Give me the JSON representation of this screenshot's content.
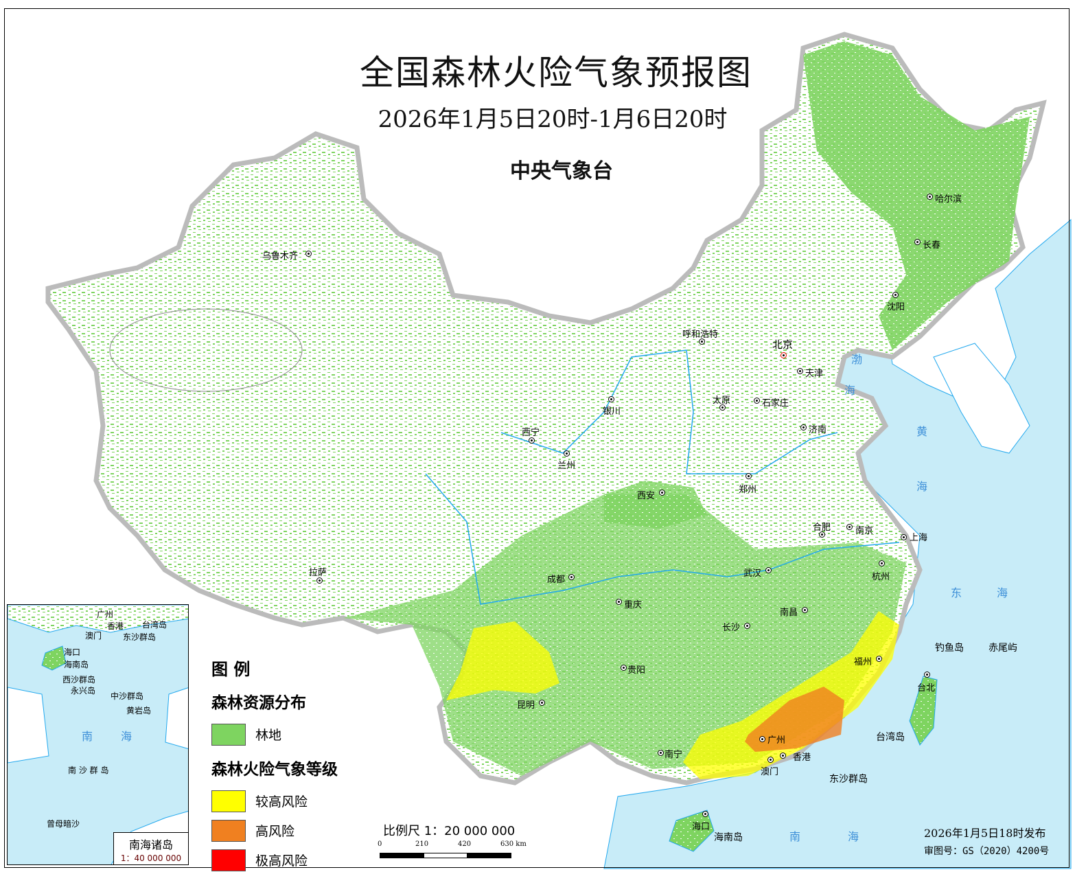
{
  "header": {
    "title": "全国森林火险气象预报图",
    "period": "2026年1月5日20时-1月6日20时",
    "issuer": "中央气象台"
  },
  "colors": {
    "forest": "#7ed460",
    "sea": "#c8ecf8",
    "river": "#22a8ee",
    "risk_high_moderate": "#ffff00",
    "risk_high": "#f08020",
    "risk_extreme": "#ff0000"
  },
  "cities": [
    {
      "name": "乌鲁木齐"
    },
    {
      "name": "哈尔滨"
    },
    {
      "name": "长春"
    },
    {
      "name": "沈阳"
    },
    {
      "name": "呼和浩特"
    },
    {
      "name": "北京"
    },
    {
      "name": "天津"
    },
    {
      "name": "石家庄"
    },
    {
      "name": "太原"
    },
    {
      "name": "银川"
    },
    {
      "name": "西宁"
    },
    {
      "name": "兰州"
    },
    {
      "name": "济南"
    },
    {
      "name": "郑州"
    },
    {
      "name": "西安"
    },
    {
      "name": "合肥"
    },
    {
      "name": "南京"
    },
    {
      "name": "上海"
    },
    {
      "name": "武汉"
    },
    {
      "name": "杭州"
    },
    {
      "name": "拉萨"
    },
    {
      "name": "成都"
    },
    {
      "name": "重庆"
    },
    {
      "name": "南昌"
    },
    {
      "name": "长沙"
    },
    {
      "name": "福州"
    },
    {
      "name": "贵阳"
    },
    {
      "name": "昆明"
    },
    {
      "name": "台北"
    },
    {
      "name": "广州"
    },
    {
      "name": "南宁"
    },
    {
      "name": "香港"
    },
    {
      "name": "澳门"
    },
    {
      "name": "海口"
    }
  ],
  "places": [
    "钓鱼岛",
    "赤尾屿",
    "台湾岛",
    "东沙群岛",
    "海南岛"
  ],
  "sea_labels": [
    "渤",
    "海",
    "黄",
    "海",
    "东",
    "海",
    "南",
    "海"
  ],
  "legend": {
    "title": "图 例",
    "forest_section": "森林资源分布",
    "forest_label": "林地",
    "risk_section": "森林火险气象等级",
    "risk_levels": [
      "较高风险",
      "高风险",
      "极高风险"
    ]
  },
  "scale": {
    "label": "比例尺 1：20 000 000",
    "ticks": [
      "0",
      "210",
      "420",
      "630 km"
    ]
  },
  "inset": {
    "title": "南海诸岛",
    "scale": "1：40 000 000",
    "labels": [
      "广州",
      "香港",
      "澳门",
      "台湾岛",
      "东沙群岛",
      "海口",
      "海南岛",
      "西沙群岛",
      "永兴岛",
      "中沙群岛",
      "黄岩岛",
      "南 沙 群 岛",
      "曾母暗沙"
    ],
    "sea": [
      "南",
      "海"
    ]
  },
  "footer": {
    "issued": "2026年1月5日18时发布",
    "approval": "审图号：GS（2020）4200号"
  }
}
